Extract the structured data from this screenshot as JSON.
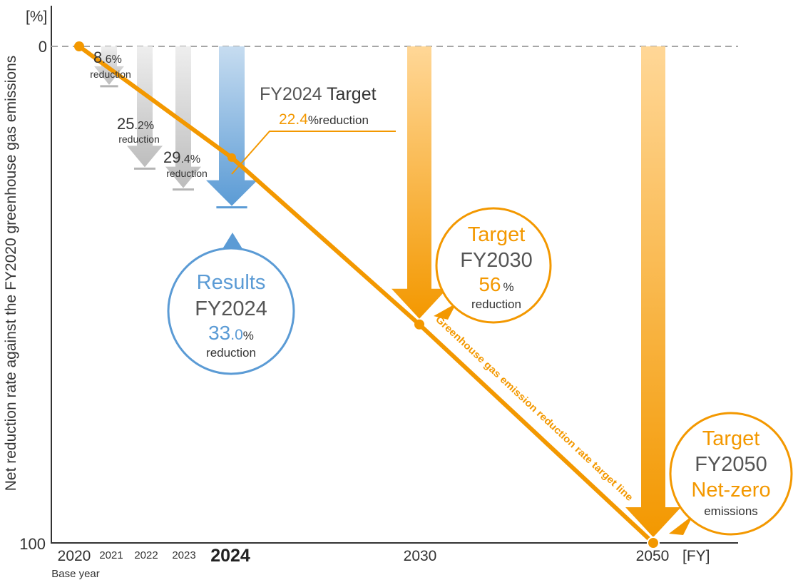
{
  "chart_data": {
    "type": "bar",
    "ylabel": "Net reduction rate against the FY2020 greenhouse gas emissions",
    "yunit": "[%]",
    "xunit": "[FY]",
    "ylim": [
      0,
      100
    ],
    "yticks": [
      "0",
      "100"
    ],
    "grid": false,
    "x_categories": [
      {
        "label": "2020",
        "sublabel": "Base year",
        "year": 2020
      },
      {
        "label": "2021",
        "year": 2021
      },
      {
        "label": "2022",
        "year": 2022
      },
      {
        "label": "2023",
        "year": 2023
      },
      {
        "label": "2024",
        "year": 2024
      },
      {
        "label": "2030",
        "year": 2030
      },
      {
        "label": "2050",
        "year": 2050
      }
    ],
    "series": [
      {
        "name": "Results",
        "points": [
          {
            "year": 2021,
            "value": 8.6,
            "int": "8",
            "dec": ".6",
            "pct": "%",
            "word": "reduction"
          },
          {
            "year": 2022,
            "value": 25.2,
            "int": "25",
            "dec": ".2",
            "pct": "%",
            "word": "reduction"
          },
          {
            "year": 2023,
            "value": 29.4,
            "int": "29",
            "dec": ".4",
            "pct": "%",
            "word": "reduction"
          },
          {
            "year": 2024,
            "value": 33.0,
            "int": "33",
            "dec": ".0",
            "pct": "%",
            "word": "reduction"
          }
        ]
      },
      {
        "name": "Targets",
        "points": [
          {
            "year": 2030,
            "value": 56
          },
          {
            "year": 2050,
            "value": 100
          }
        ]
      }
    ],
    "target_line": {
      "label": "Greenhouse gas emission reduction rate target line",
      "points": [
        {
          "year": 2020,
          "value": 0
        },
        {
          "year": 2024,
          "value": 22.4
        },
        {
          "year": 2030,
          "value": 56
        },
        {
          "year": 2050,
          "value": 100
        }
      ]
    },
    "annotations": {
      "fy2024_target": {
        "title_a": "FY2024",
        "title_b": " Target",
        "value": "22.4",
        "suffix": "%reduction"
      },
      "results_2024": {
        "title": "Results",
        "year": "FY2024",
        "int": "33",
        "dec": ".0",
        "pct": "%",
        "word": "reduction"
      },
      "target_2030": {
        "title": "Target",
        "year": "FY2030",
        "value": "56",
        "pct": "%",
        "word": "reduction"
      },
      "target_2050": {
        "title": "Target",
        "year": "FY2050",
        "line3": "Net-zero",
        "word": "emissions"
      }
    },
    "colors": {
      "orange": "#f39800",
      "orange_light": "#ffd89a",
      "blue": "#5b9bd5",
      "blue_light": "#bcd6ee",
      "gray": "#b4b4b4",
      "gray_light": "#e6e6e6",
      "text": "#333333"
    }
  }
}
